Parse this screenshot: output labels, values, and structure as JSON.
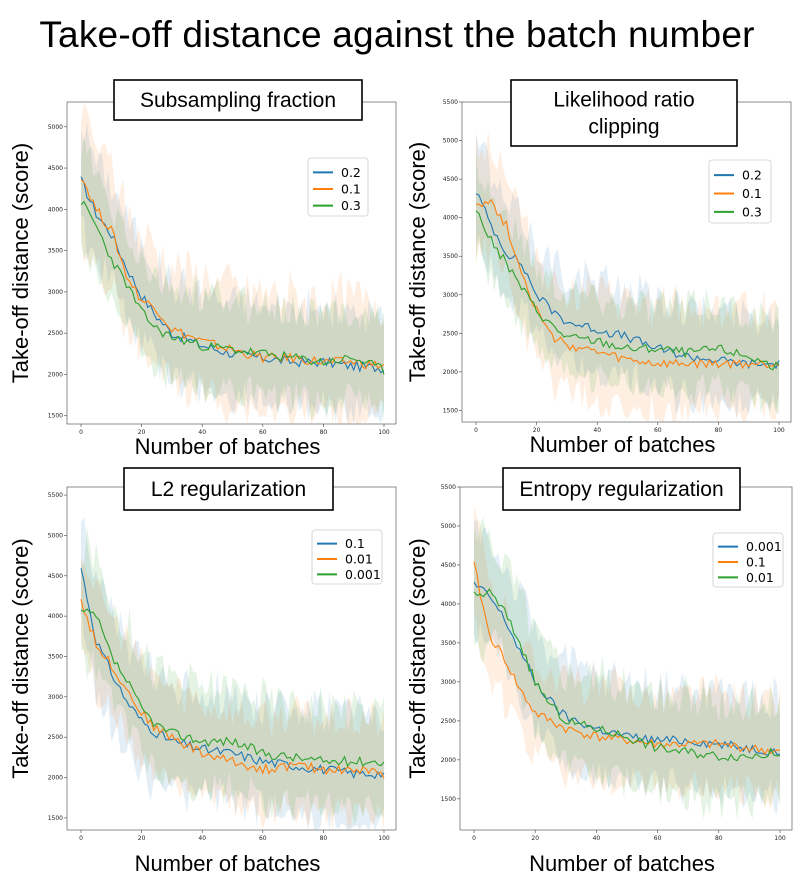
{
  "title": "Take-off distance against the batch number",
  "colors": {
    "blue": "#1f77b4",
    "orange": "#ff7f0e",
    "green": "#2ca02c"
  },
  "chart_data": [
    {
      "type": "line",
      "title": "Subsampling fraction",
      "xlabel": "Number of batches",
      "ylabel": "Take-off distance (score)",
      "xlim": [
        0,
        100
      ],
      "ylim": [
        1400,
        5300
      ],
      "xticks": [
        0,
        20,
        40,
        60,
        80,
        100
      ],
      "yticks": [
        1500,
        2000,
        2500,
        3000,
        3500,
        4000,
        4500,
        5000
      ],
      "legend_position": "top-right",
      "series": [
        {
          "name": "0.2",
          "color": "#1f77b4",
          "x": [
            0,
            5,
            10,
            15,
            20,
            25,
            30,
            40,
            50,
            60,
            70,
            80,
            90,
            100
          ],
          "values": [
            4350,
            3950,
            3700,
            3300,
            2950,
            2700,
            2500,
            2350,
            2250,
            2200,
            2150,
            2150,
            2100,
            2080
          ],
          "band": 700
        },
        {
          "name": "0.1",
          "color": "#ff7f0e",
          "x": [
            0,
            5,
            10,
            15,
            20,
            25,
            30,
            40,
            50,
            60,
            70,
            80,
            90,
            100
          ],
          "values": [
            4420,
            4000,
            3750,
            3200,
            2900,
            2800,
            2550,
            2400,
            2300,
            2200,
            2200,
            2150,
            2150,
            2100
          ],
          "band": 850
        },
        {
          "name": "0.3",
          "color": "#2ca02c",
          "x": [
            0,
            5,
            10,
            15,
            20,
            25,
            30,
            40,
            50,
            60,
            70,
            80,
            90,
            100
          ],
          "values": [
            4100,
            3800,
            3400,
            3100,
            2750,
            2550,
            2450,
            2350,
            2300,
            2250,
            2200,
            2150,
            2200,
            2050
          ],
          "band": 650
        }
      ]
    },
    {
      "type": "line",
      "title": "Likelihood ratio clipping",
      "title_lines": [
        "Likelihood ratio",
        "clipping"
      ],
      "xlabel": "Number of batches",
      "ylabel": "Take-off distance (score)",
      "xlim": [
        0,
        100
      ],
      "ylim": [
        1350,
        5500
      ],
      "xticks": [
        0,
        20,
        40,
        60,
        80,
        100
      ],
      "yticks": [
        1500,
        2000,
        2500,
        3000,
        3500,
        4000,
        4500,
        5000,
        5500
      ],
      "legend_position": "top-right",
      "series": [
        {
          "name": "0.2",
          "color": "#1f77b4",
          "x": [
            0,
            5,
            10,
            15,
            20,
            25,
            30,
            40,
            50,
            60,
            70,
            80,
            90,
            100
          ],
          "values": [
            4350,
            3900,
            3550,
            3400,
            3000,
            2800,
            2650,
            2550,
            2450,
            2300,
            2200,
            2150,
            2100,
            2100
          ],
          "band": 700
        },
        {
          "name": "0.1",
          "color": "#ff7f0e",
          "x": [
            0,
            5,
            10,
            15,
            20,
            25,
            30,
            40,
            50,
            60,
            70,
            80,
            90,
            100
          ],
          "values": [
            4200,
            4200,
            3900,
            3300,
            2800,
            2450,
            2350,
            2250,
            2150,
            2100,
            2100,
            2100,
            2100,
            2100
          ],
          "band": 800
        },
        {
          "name": "0.3",
          "color": "#2ca02c",
          "x": [
            0,
            5,
            10,
            15,
            20,
            25,
            30,
            40,
            50,
            60,
            70,
            80,
            90,
            100
          ],
          "values": [
            4100,
            3700,
            3400,
            3100,
            2800,
            2600,
            2450,
            2400,
            2300,
            2300,
            2250,
            2300,
            2200,
            2050
          ],
          "band": 650
        }
      ]
    },
    {
      "type": "line",
      "title": "L2 regularization",
      "xlabel": "Number of batches",
      "ylabel": "Take-off distance (score)",
      "xlim": [
        0,
        100
      ],
      "ylim": [
        1350,
        5600
      ],
      "xticks": [
        0,
        20,
        40,
        60,
        80,
        100
      ],
      "yticks": [
        1500,
        2000,
        2500,
        3000,
        3500,
        4000,
        4500,
        5000,
        5500
      ],
      "legend_position": "top-right",
      "series": [
        {
          "name": "0.1",
          "color": "#1f77b4",
          "x": [
            0,
            5,
            10,
            15,
            20,
            25,
            30,
            40,
            50,
            60,
            70,
            80,
            90,
            100
          ],
          "values": [
            4600,
            3700,
            3300,
            2950,
            2700,
            2550,
            2450,
            2350,
            2300,
            2200,
            2150,
            2100,
            2050,
            2050
          ],
          "band": 800
        },
        {
          "name": "0.01",
          "color": "#ff7f0e",
          "x": [
            0,
            5,
            10,
            15,
            20,
            25,
            30,
            40,
            50,
            60,
            70,
            80,
            90,
            100
          ],
          "values": [
            4200,
            3650,
            3400,
            3100,
            2800,
            2600,
            2500,
            2300,
            2200,
            2100,
            2150,
            2100,
            2100,
            2050
          ],
          "band": 700
        },
        {
          "name": "0.001",
          "color": "#2ca02c",
          "x": [
            0,
            5,
            10,
            15,
            20,
            25,
            30,
            40,
            50,
            60,
            70,
            80,
            90,
            100
          ],
          "values": [
            4050,
            4000,
            3500,
            3200,
            2850,
            2650,
            2550,
            2450,
            2450,
            2300,
            2250,
            2200,
            2200,
            2200
          ],
          "band": 750
        }
      ]
    },
    {
      "type": "line",
      "title": "Entropy regularization",
      "xlabel": "Number of batches",
      "ylabel": "Take-off distance (score)",
      "xlim": [
        0,
        100
      ],
      "ylim": [
        1100,
        5500
      ],
      "xticks": [
        0,
        20,
        40,
        60,
        80,
        100
      ],
      "yticks": [
        1500,
        2000,
        2500,
        3000,
        3500,
        4000,
        4500,
        5000,
        5500
      ],
      "legend_position": "top-right",
      "series": [
        {
          "name": "0.001",
          "color": "#1f77b4",
          "x": [
            0,
            5,
            10,
            15,
            20,
            25,
            30,
            40,
            50,
            60,
            70,
            80,
            90,
            100
          ],
          "values": [
            4250,
            4100,
            3800,
            3400,
            3000,
            2750,
            2550,
            2400,
            2300,
            2250,
            2250,
            2200,
            2150,
            2100
          ],
          "band": 750
        },
        {
          "name": "0.1",
          "color": "#ff7f0e",
          "x": [
            0,
            5,
            10,
            15,
            20,
            25,
            30,
            40,
            50,
            60,
            70,
            80,
            90,
            100
          ],
          "values": [
            4500,
            3600,
            3300,
            2900,
            2600,
            2500,
            2400,
            2300,
            2250,
            2200,
            2200,
            2200,
            2150,
            2100
          ],
          "band": 700
        },
        {
          "name": "0.01",
          "color": "#2ca02c",
          "x": [
            0,
            5,
            10,
            15,
            20,
            25,
            30,
            40,
            50,
            60,
            70,
            80,
            90,
            100
          ],
          "values": [
            4100,
            4150,
            3900,
            3500,
            3000,
            2700,
            2500,
            2400,
            2300,
            2150,
            2100,
            2050,
            2050,
            2100
          ],
          "band": 750
        }
      ]
    }
  ]
}
